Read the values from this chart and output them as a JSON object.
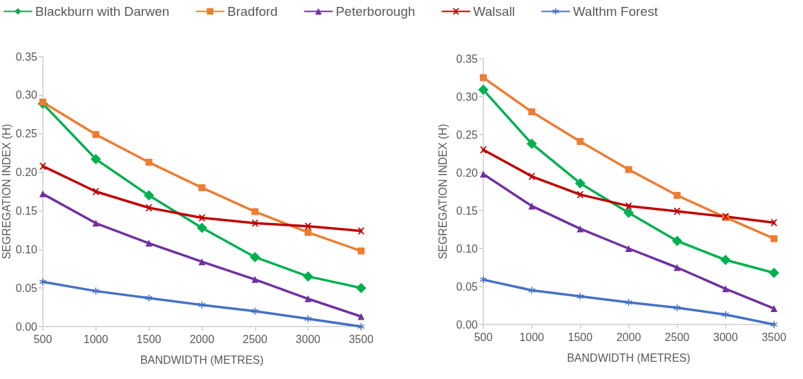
{
  "chart_data": [
    {
      "type": "line",
      "xlabel": "BANDWIDTH (METRES)",
      "ylabel": "SEGREGATION INDEX (H)",
      "categories": [
        "500",
        "1000",
        "1500",
        "2000",
        "2500",
        "3000",
        "3500"
      ],
      "ylim": [
        0,
        0.35
      ],
      "yticks": [
        {
          "value": 0,
          "label": "0.00"
        },
        {
          "value": 0.05,
          "label": "0.05"
        },
        {
          "value": 0.1,
          "label": "0.10"
        },
        {
          "value": 0.15,
          "label": "0.15"
        },
        {
          "value": 0.2,
          "label": "0.20"
        },
        {
          "value": 0.25,
          "label": "0.25"
        },
        {
          "value": 0.3,
          "label": "0.30"
        },
        {
          "value": 0.35,
          "label": "0.35"
        }
      ],
      "grid": false,
      "legend": "top",
      "series": [
        {
          "name": "Blackburn with Darwen",
          "color": "#00b050",
          "marker": "diamond",
          "values": [
            0.289,
            0.217,
            0.17,
            0.128,
            0.09,
            0.065,
            0.05
          ]
        },
        {
          "name": "Bradford",
          "color": "#ed7d31",
          "marker": "square",
          "values": [
            0.291,
            0.249,
            0.213,
            0.18,
            0.149,
            0.122,
            0.098
          ]
        },
        {
          "name": "Peterborough",
          "color": "#7030a0",
          "marker": "triangle",
          "values": [
            0.172,
            0.134,
            0.108,
            0.084,
            0.061,
            0.036,
            0.013
          ]
        },
        {
          "name": "Walsall",
          "color": "#c00000",
          "marker": "cross",
          "values": [
            0.208,
            0.175,
            0.154,
            0.141,
            0.134,
            0.13,
            0.124
          ]
        },
        {
          "name": "Walthm Forest",
          "color": "#4472c4",
          "marker": "star",
          "values": [
            0.058,
            0.046,
            0.037,
            0.028,
            0.02,
            0.01,
            0
          ]
        }
      ]
    },
    {
      "type": "line",
      "xlabel": "BANDWIDTH (METRES)",
      "ylabel": "SEGREGATION INDEX (H)",
      "categories": [
        "500",
        "1000",
        "1500",
        "2000",
        "2500",
        "3000",
        "3500"
      ],
      "ylim": [
        0,
        0.35
      ],
      "yticks": [
        {
          "value": 0,
          "label": "0.00"
        },
        {
          "value": 0.05,
          "label": "0.05"
        },
        {
          "value": 0.1,
          "label": "0.10"
        },
        {
          "value": 0.15,
          "label": "0.15"
        },
        {
          "value": 0.2,
          "label": "0.20"
        },
        {
          "value": 0.25,
          "label": "0.25"
        },
        {
          "value": 0.3,
          "label": "0.30"
        },
        {
          "value": 0.35,
          "label": "0.35"
        }
      ],
      "grid": false,
      "series": [
        {
          "color": "#00b050",
          "marker": "diamond",
          "values": [
            0.309,
            0.238,
            0.186,
            0.147,
            0.11,
            0.085,
            0.068
          ]
        },
        {
          "color": "#ed7d31",
          "marker": "square",
          "values": [
            0.325,
            0.28,
            0.241,
            0.204,
            0.17,
            0.141,
            0.113
          ]
        },
        {
          "color": "#7030a0",
          "marker": "triangle",
          "values": [
            0.198,
            0.156,
            0.126,
            0.1,
            0.075,
            0.047,
            0.021
          ]
        },
        {
          "color": "#c00000",
          "marker": "cross",
          "values": [
            0.23,
            0.195,
            0.171,
            0.156,
            0.149,
            0.142,
            0.134
          ]
        },
        {
          "color": "#4472c4",
          "marker": "star",
          "values": [
            0.059,
            0.045,
            0.037,
            0.029,
            0.022,
            0.013,
            0
          ]
        }
      ]
    }
  ]
}
